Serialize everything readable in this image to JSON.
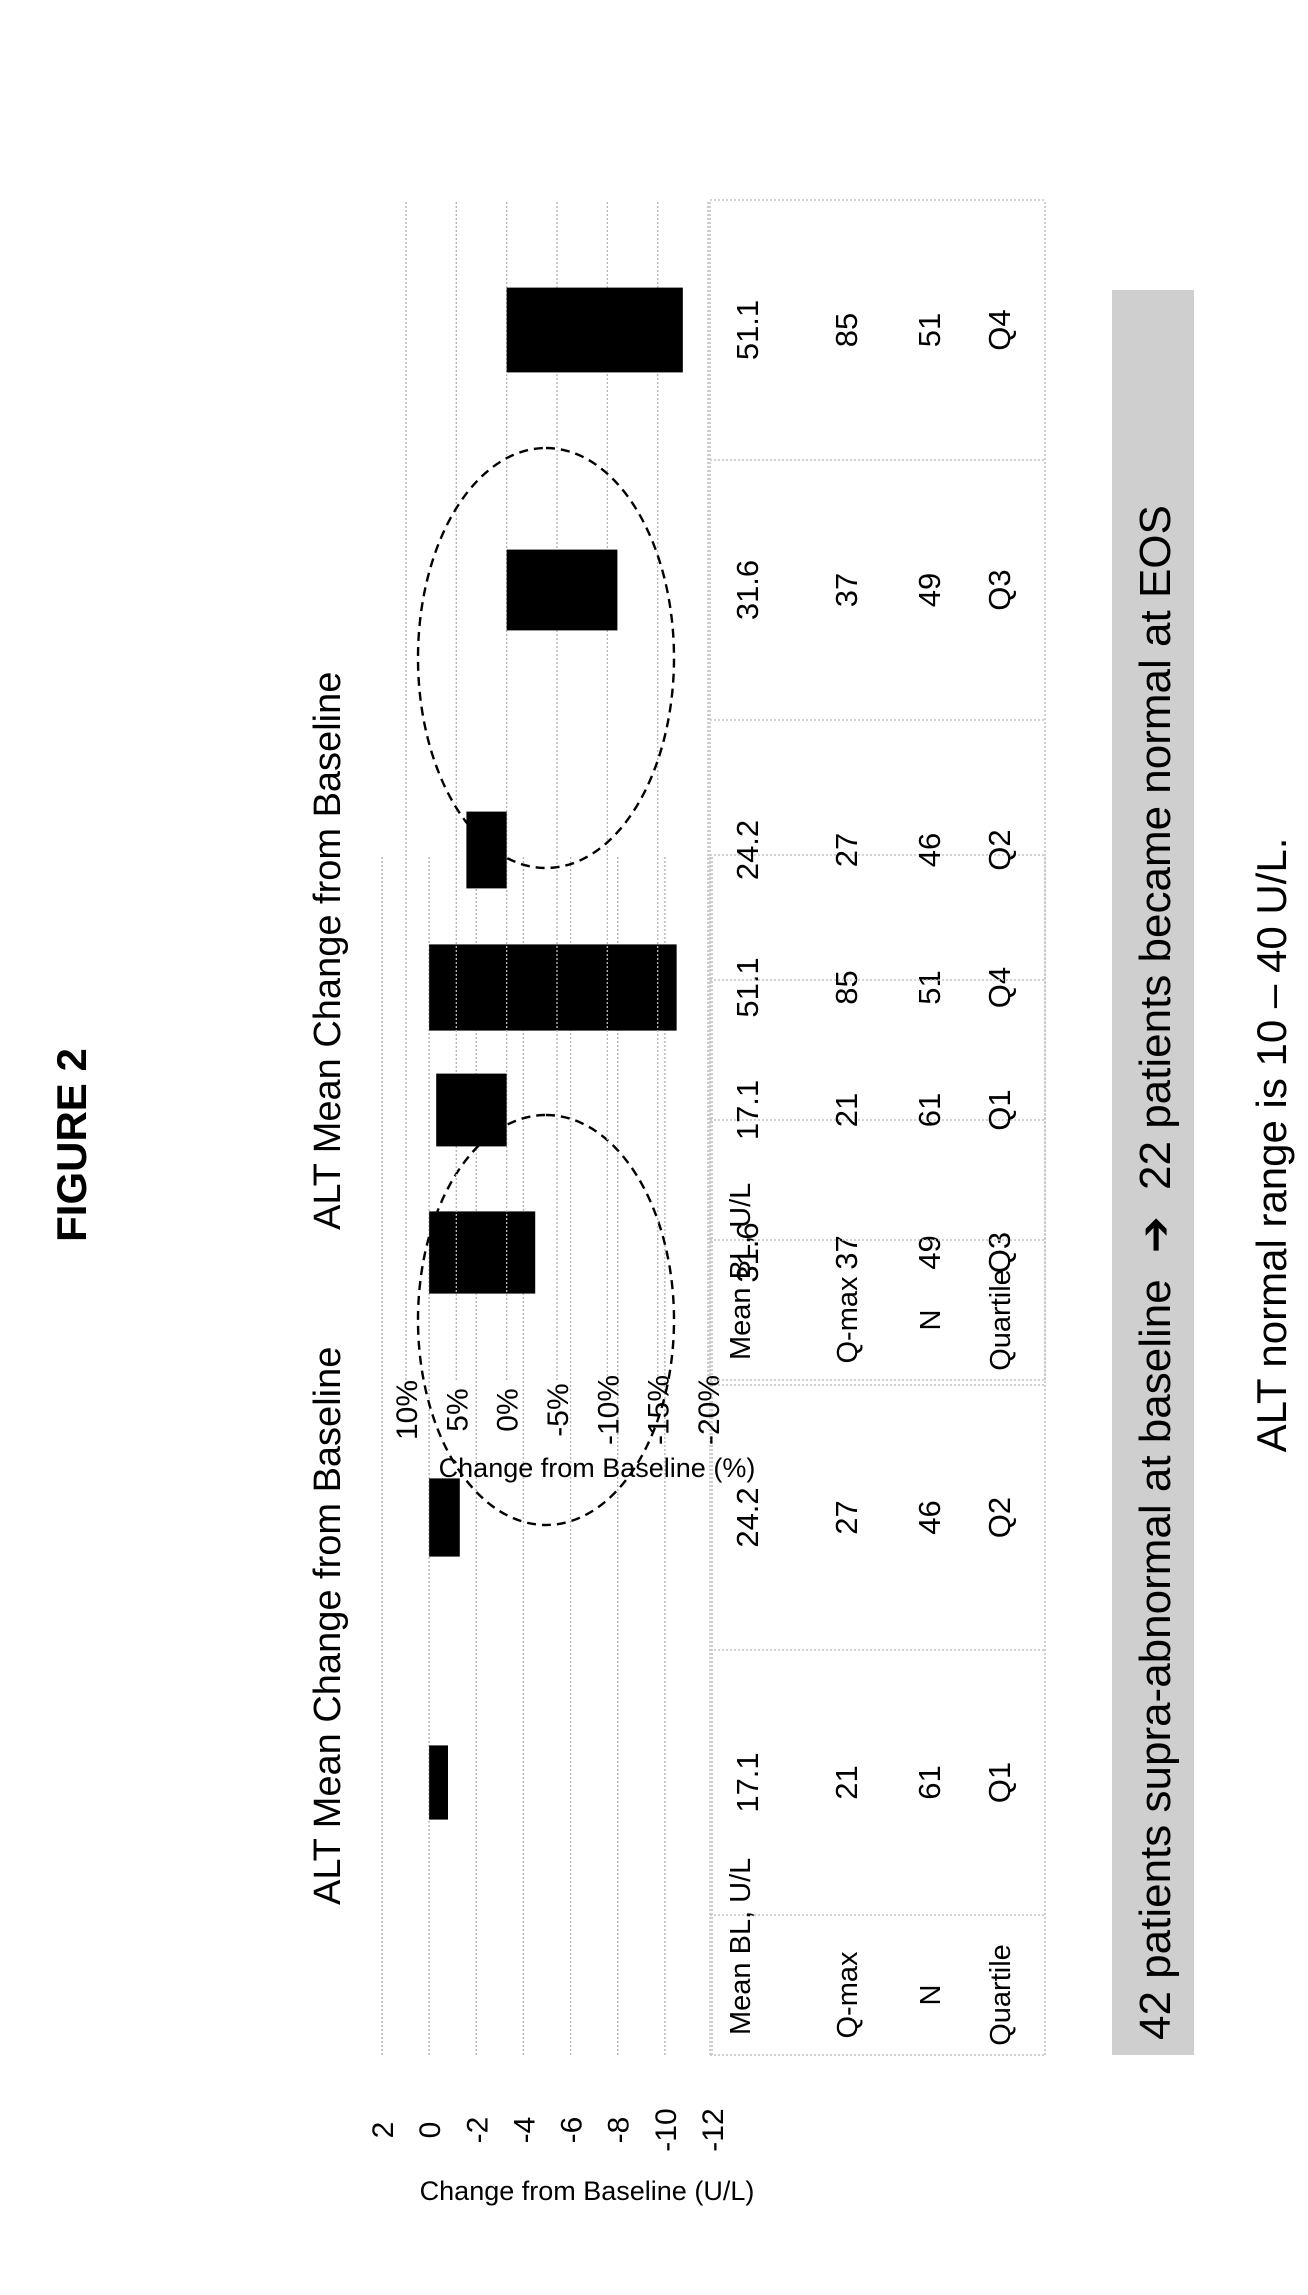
{
  "figure_title": "FIGURE 2",
  "footnote": "ALT normal range is 10 – 40 U/L.",
  "banner": {
    "text_before": "42 patients supra-abnormal  at baseline",
    "arrow": "➔",
    "text_after": "22 patients became normal at EOS"
  },
  "table_row_labels": [
    "Mean BL, U/L",
    "Q-max",
    "N",
    "Quartile"
  ],
  "table_columns": [
    {
      "mean_bl": "17.1",
      "q_max": "21",
      "n": "61",
      "quartile": "Q1"
    },
    {
      "mean_bl": "24.2",
      "q_max": "27",
      "n": "46",
      "quartile": "Q2"
    },
    {
      "mean_bl": "31.6",
      "q_max": "37",
      "n": "49",
      "quartile": "Q3"
    },
    {
      "mean_bl": "51.1",
      "q_max": "85",
      "n": "51",
      "quartile": "Q4"
    }
  ],
  "chart_data": [
    {
      "type": "bar",
      "title": "ALT Mean Change from Baseline",
      "xlabel": "",
      "ylabel": "Change from Baseline (U/L)",
      "categories": [
        "Q1",
        "Q2",
        "Q3",
        "Q4"
      ],
      "values": [
        -0.8,
        -1.3,
        -4.5,
        -10.5
      ],
      "ylim": [
        -12,
        2
      ],
      "yticks": [
        2,
        0,
        -2,
        -4,
        -6,
        -8,
        -10,
        -12
      ],
      "ytick_labels": [
        "2",
        "0",
        "-2",
        "-4",
        "-6",
        "-8",
        "-10",
        "-12"
      ],
      "highlight_category": "Q4",
      "grid": true
    },
    {
      "type": "bar",
      "title": "ALT Mean Change from Baseline",
      "xlabel": "",
      "ylabel": "Change from Baseline (%)",
      "categories": [
        "Q1",
        "Q2",
        "Q3",
        "Q4"
      ],
      "values": [
        7,
        4,
        -11,
        -17.5
      ],
      "ylim": [
        -20,
        10
      ],
      "yticks": [
        10,
        5,
        0,
        -5,
        -10,
        -15,
        -20
      ],
      "ytick_labels": [
        "10%",
        "5%",
        "0%",
        "-5%",
        "-10%",
        "-15%",
        "-20%"
      ],
      "highlight_category": "Q4",
      "grid": true
    }
  ]
}
